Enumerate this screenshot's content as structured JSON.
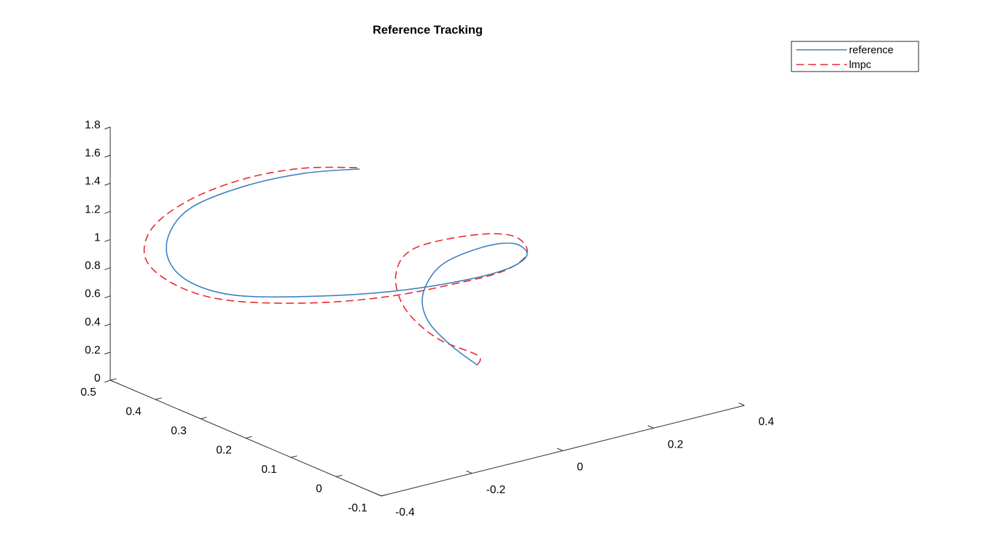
{
  "chart_data": {
    "type": "line",
    "title": "Reference Tracking",
    "xlabel": "",
    "ylabel": "",
    "zlabel": "",
    "projection": "3d",
    "xlim": [
      -0.4,
      0.4
    ],
    "ylim": [
      -0.1,
      0.5
    ],
    "zlim": [
      0,
      1.8
    ],
    "x_ticks": [
      "-0.4",
      "-0.2",
      "0",
      "0.2",
      "0.4"
    ],
    "y_ticks": [
      "-0.1",
      "0",
      "0.1",
      "0.2",
      "0.3",
      "0.4",
      "0.5"
    ],
    "z_ticks": [
      "0",
      "0.2",
      "0.4",
      "0.6",
      "0.8",
      "1",
      "1.2",
      "1.4",
      "1.6",
      "1.8"
    ],
    "grid": false,
    "legend_position": "top-right",
    "series": [
      {
        "name": "reference",
        "color": "#3a7fc1",
        "line_style": "solid",
        "points": [
          [
            0.16,
            0.25,
            0.0
          ],
          [
            0.12,
            0.27,
            0.15
          ],
          [
            0.1,
            0.3,
            0.3
          ],
          [
            0.11,
            0.32,
            0.45
          ],
          [
            0.16,
            0.33,
            0.6
          ],
          [
            0.22,
            0.3,
            0.72
          ],
          [
            0.24,
            0.25,
            0.8
          ],
          [
            0.2,
            0.18,
            0.85
          ],
          [
            0.13,
            0.15,
            0.85
          ],
          [
            0.05,
            0.17,
            0.8
          ],
          [
            -0.05,
            0.23,
            0.72
          ],
          [
            -0.15,
            0.3,
            0.67
          ],
          [
            -0.25,
            0.37,
            0.66
          ],
          [
            -0.3,
            0.42,
            0.72
          ],
          [
            -0.32,
            0.45,
            0.85
          ],
          [
            -0.3,
            0.47,
            1.0
          ],
          [
            -0.25,
            0.47,
            1.15
          ],
          [
            -0.15,
            0.45,
            1.25
          ],
          [
            -0.05,
            0.42,
            1.3
          ],
          [
            0.03,
            0.38,
            1.32
          ]
        ]
      },
      {
        "name": "lmpc",
        "color": "#e8262b",
        "line_style": "dashed",
        "points": [
          [
            0.16,
            0.25,
            0.0
          ],
          [
            0.16,
            0.25,
            0.07
          ],
          [
            0.1,
            0.28,
            0.2
          ],
          [
            0.07,
            0.32,
            0.38
          ],
          [
            0.09,
            0.36,
            0.55
          ],
          [
            0.14,
            0.37,
            0.68
          ],
          [
            0.22,
            0.32,
            0.78
          ],
          [
            0.25,
            0.26,
            0.83
          ],
          [
            0.2,
            0.18,
            0.86
          ],
          [
            0.12,
            0.15,
            0.84
          ],
          [
            0.04,
            0.18,
            0.77
          ],
          [
            -0.06,
            0.23,
            0.69
          ],
          [
            -0.16,
            0.3,
            0.63
          ],
          [
            -0.26,
            0.38,
            0.62
          ],
          [
            -0.32,
            0.43,
            0.7
          ],
          [
            -0.35,
            0.47,
            0.85
          ],
          [
            -0.32,
            0.49,
            1.02
          ],
          [
            -0.25,
            0.48,
            1.18
          ],
          [
            -0.15,
            0.46,
            1.28
          ],
          [
            -0.05,
            0.43,
            1.32
          ],
          [
            0.03,
            0.38,
            1.33
          ]
        ]
      }
    ]
  }
}
